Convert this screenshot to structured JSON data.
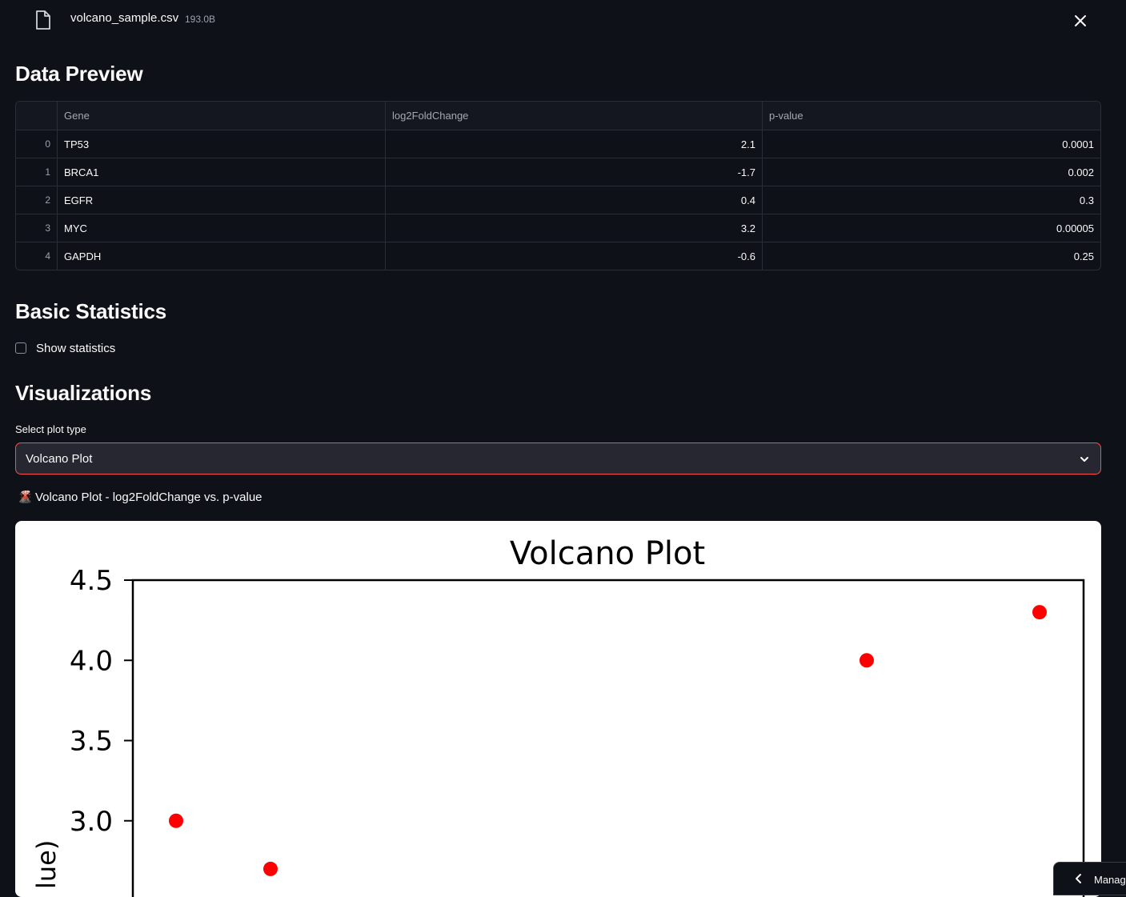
{
  "file": {
    "name": "volcano_sample.csv",
    "size": "193.0B",
    "icon": "file-icon",
    "close_icon": "close-icon"
  },
  "sections": {
    "preview": "Data Preview",
    "stats": "Basic Statistics",
    "viz": "Visualizations"
  },
  "table": {
    "columns": [
      "Gene",
      "log2FoldChange",
      "p-value"
    ],
    "rows": [
      {
        "index": "0",
        "gene": "TP53",
        "lfc": "2.1",
        "p": "0.0001"
      },
      {
        "index": "1",
        "gene": "BRCA1",
        "lfc": "-1.7",
        "p": "0.002"
      },
      {
        "index": "2",
        "gene": "EGFR",
        "lfc": "0.4",
        "p": "0.3"
      },
      {
        "index": "3",
        "gene": "MYC",
        "lfc": "3.2",
        "p": "0.00005"
      },
      {
        "index": "4",
        "gene": "GAPDH",
        "lfc": "-0.6",
        "p": "0.25"
      }
    ]
  },
  "stats_checkbox": {
    "label": "Show statistics",
    "checked": false
  },
  "plot_select": {
    "label": "Select plot type",
    "value": "Volcano Plot",
    "icon": "chevron-down-icon"
  },
  "caption": {
    "emoji": "🌋",
    "text": "Volcano Plot - log2FoldChange vs. p-value"
  },
  "chart_data": {
    "type": "scatter",
    "title": "Volcano Plot",
    "ylabel_visible": "lue)",
    "y_ticks": [
      "4.5",
      "4.0",
      "3.5",
      "3.0"
    ],
    "ylim": [
      2.7,
      4.5
    ],
    "points": [
      {
        "y": 3.0,
        "color": "#ff0000"
      },
      {
        "y": 2.7,
        "color": "#ff0000"
      },
      {
        "y": 4.0,
        "color": "#ff0000"
      },
      {
        "y": 4.3,
        "color": "#ff0000"
      }
    ]
  },
  "manage": {
    "label": "Manag",
    "icon": "chevron-left-icon"
  },
  "colors": {
    "accent": "#ff4b4b",
    "background": "#0e1117",
    "point": "#ff0000"
  }
}
